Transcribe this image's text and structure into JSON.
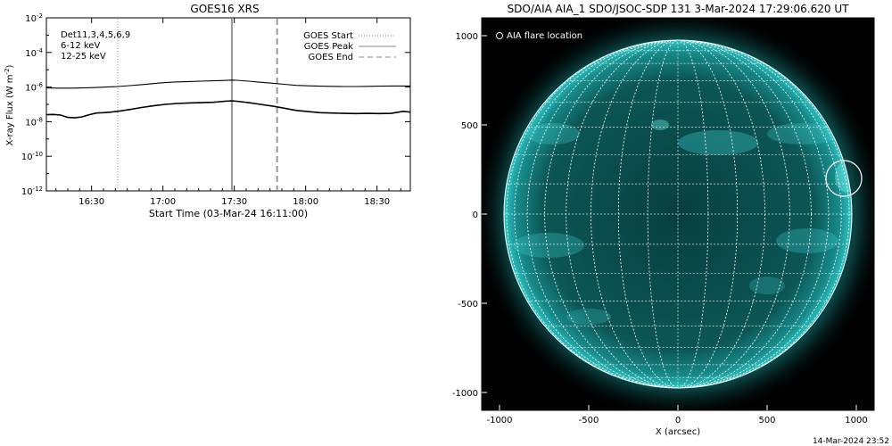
{
  "colors": {
    "background": "#ffffff",
    "axis": "#000000",
    "disk": "#0b4f4f",
    "limb": "#29b7b7",
    "grid": "#ffffff",
    "det_magenta": "#e000e0",
    "det_green": "#00d000",
    "marker_gray": "#999999"
  },
  "chart_data": [
    {
      "type": "line",
      "title": "GOES16 XRS",
      "xlabel": "Start Time (03-Mar-24 16:11:00)",
      "ylabel_prefix": "X-ray Flux (W m",
      "ylabel_sup": "-2",
      "ylabel_suffix": ")",
      "yscale": "log",
      "xlim_minutes": [
        0,
        153
      ],
      "ylim_exp": [
        -12,
        -2
      ],
      "xticks": [
        {
          "m": 19,
          "label": "16:30"
        },
        {
          "m": 49,
          "label": "17:00"
        },
        {
          "m": 79,
          "label": "17:30"
        },
        {
          "m": 109,
          "label": "18:00"
        },
        {
          "m": 139,
          "label": "18:30"
        }
      ],
      "yticks": [
        {
          "exp": -2,
          "label": "-2"
        },
        {
          "exp": -4,
          "label": "-4"
        },
        {
          "exp": -6,
          "label": "-6"
        },
        {
          "exp": -8,
          "label": "-8"
        },
        {
          "exp": -10,
          "label": "-10"
        },
        {
          "exp": -12,
          "label": "-12"
        }
      ],
      "detector_labels": [
        {
          "text": "Det11,3,4,5,6,9",
          "color": "#000000"
        },
        {
          "text": "6-12 keV",
          "color": "#e000e0"
        },
        {
          "text": "12-25 keV",
          "color": "#00d000"
        }
      ],
      "legend": [
        {
          "label": "GOES Start",
          "style": "dotted"
        },
        {
          "label": "GOES Peak",
          "style": "solid"
        },
        {
          "label": "GOES End",
          "style": "dashed"
        }
      ],
      "markers": [
        {
          "name": "goes-start",
          "minute": 30,
          "style": "dotted"
        },
        {
          "name": "goes-peak",
          "minute": 78,
          "style": "solid"
        },
        {
          "name": "goes-end",
          "minute": 97,
          "style": "dashed"
        }
      ],
      "series": [
        {
          "key": "long",
          "x": [
            0,
            5,
            10,
            15,
            20,
            25,
            30,
            35,
            40,
            45,
            50,
            55,
            60,
            65,
            70,
            75,
            78,
            80,
            85,
            90,
            95,
            100,
            105,
            110,
            115,
            120,
            125,
            130,
            135,
            140,
            145,
            150,
            153
          ],
          "y_exp": [
            -6.05,
            -6.06,
            -6.06,
            -6.05,
            -6.03,
            -6.0,
            -5.97,
            -5.92,
            -5.86,
            -5.8,
            -5.74,
            -5.7,
            -5.68,
            -5.66,
            -5.64,
            -5.62,
            -5.6,
            -5.61,
            -5.66,
            -5.72,
            -5.78,
            -5.84,
            -5.9,
            -5.93,
            -5.95,
            -5.96,
            -5.97,
            -5.97,
            -5.96,
            -5.95,
            -5.94,
            -5.94,
            -5.94
          ]
        },
        {
          "key": "short",
          "x": [
            0,
            3,
            6,
            9,
            12,
            15,
            18,
            21,
            24,
            27,
            30,
            35,
            40,
            45,
            50,
            55,
            60,
            65,
            70,
            75,
            78,
            80,
            85,
            90,
            95,
            100,
            105,
            110,
            115,
            120,
            125,
            130,
            135,
            140,
            145,
            150,
            153
          ],
          "y_exp": [
            -7.6,
            -7.58,
            -7.62,
            -7.75,
            -7.78,
            -7.72,
            -7.6,
            -7.5,
            -7.48,
            -7.45,
            -7.4,
            -7.3,
            -7.18,
            -7.08,
            -7.0,
            -6.95,
            -6.92,
            -6.9,
            -6.88,
            -6.82,
            -6.8,
            -6.82,
            -6.9,
            -7.0,
            -7.1,
            -7.22,
            -7.35,
            -7.42,
            -7.48,
            -7.5,
            -7.52,
            -7.53,
            -7.52,
            -7.53,
            -7.52,
            -7.4,
            -7.45
          ]
        }
      ]
    },
    {
      "type": "image",
      "title": "SDO/AIA AIA_1 SDO/JSOC-SDP 131  3-Mar-2024 17:29:06.620 UT",
      "xlabel": "X (arcsec)",
      "xlim": [
        -1100,
        1100
      ],
      "ylim": [
        -1100,
        1100
      ],
      "xticks": [
        -1000,
        -500,
        0,
        500,
        1000
      ],
      "yticks": [
        -1000,
        -500,
        0,
        500,
        1000
      ],
      "solar_radius_arcsec": 975,
      "grid_spacing_deg": 10,
      "legend_label": "AIA flare location",
      "flare_location_arcsec": {
        "x": 930,
        "y": 200,
        "r": 100
      },
      "footer": "14-Mar-2024 23:52"
    }
  ]
}
